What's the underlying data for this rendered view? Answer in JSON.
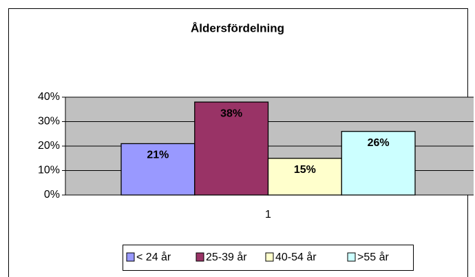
{
  "chart_data": {
    "type": "bar",
    "title": "Åldersfördelning",
    "categories": [
      "1"
    ],
    "series": [
      {
        "name": "< 24 år",
        "color": "#9999ff",
        "values": [
          21
        ],
        "value_labels": [
          "21%"
        ]
      },
      {
        "name": "25-39 år",
        "color": "#993366",
        "values": [
          38
        ],
        "value_labels": [
          "38%"
        ]
      },
      {
        "name": "40-54 år",
        "color": "#ffffcc",
        "values": [
          15
        ],
        "value_labels": [
          "15%"
        ]
      },
      {
        "name": ">55 år",
        "color": "#ccffff",
        "values": [
          26
        ],
        "value_labels": [
          "26%"
        ]
      }
    ],
    "ylim": [
      0,
      40
    ],
    "yticks": [
      {
        "value": 0,
        "label": "0%"
      },
      {
        "value": 10,
        "label": "10%"
      },
      {
        "value": 20,
        "label": "20%"
      },
      {
        "value": 30,
        "label": "30%"
      },
      {
        "value": 40,
        "label": "40%"
      }
    ],
    "grid": true,
    "plot_background": "#c0c0c0",
    "legend": "bottom"
  }
}
